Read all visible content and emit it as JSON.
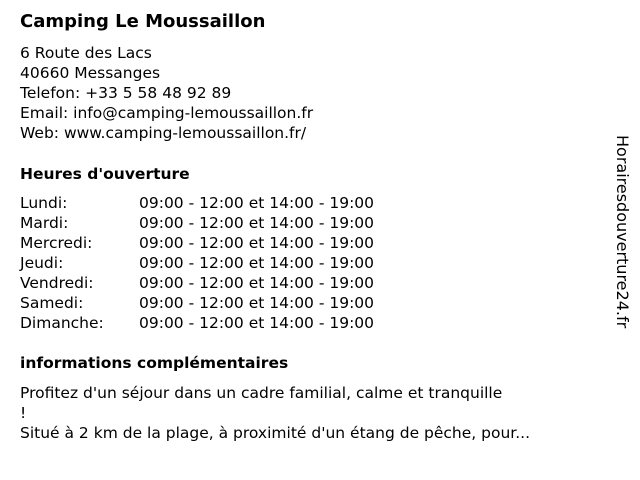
{
  "title": "Camping Le Moussaillon",
  "address": {
    "street": "6 Route des Lacs",
    "city": "40660 Messanges",
    "phone": "Telefon: +33 5 58 48 92 89",
    "email": "Email: info@camping-lemoussaillon.fr",
    "web": "Web: www.camping-lemoussaillon.fr/"
  },
  "hours_heading": "Heures d'ouverture",
  "hours": [
    {
      "day": "Lundi:",
      "time": "09:00 - 12:00 et 14:00 - 19:00"
    },
    {
      "day": "Mardi:",
      "time": "09:00 - 12:00 et 14:00 - 19:00"
    },
    {
      "day": "Mercredi:",
      "time": "09:00 - 12:00 et 14:00 - 19:00"
    },
    {
      "day": "Jeudi:",
      "time": "09:00 - 12:00 et 14:00 - 19:00"
    },
    {
      "day": "Vendredi:",
      "time": "09:00 - 12:00 et 14:00 - 19:00"
    },
    {
      "day": "Samedi:",
      "time": "09:00 - 12:00 et 14:00 - 19:00"
    },
    {
      "day": "Dimanche:",
      "time": "09:00 - 12:00 et 14:00 - 19:00"
    }
  ],
  "info_heading": "informations complémentaires",
  "info_lines": [
    "Profitez d'un séjour dans un cadre familial, calme et tranquille",
    "!",
    "Situé à 2 km de la plage, à proximité d'un étang de pêche, pour..."
  ],
  "watermark": "Horairesdouverture24.fr"
}
